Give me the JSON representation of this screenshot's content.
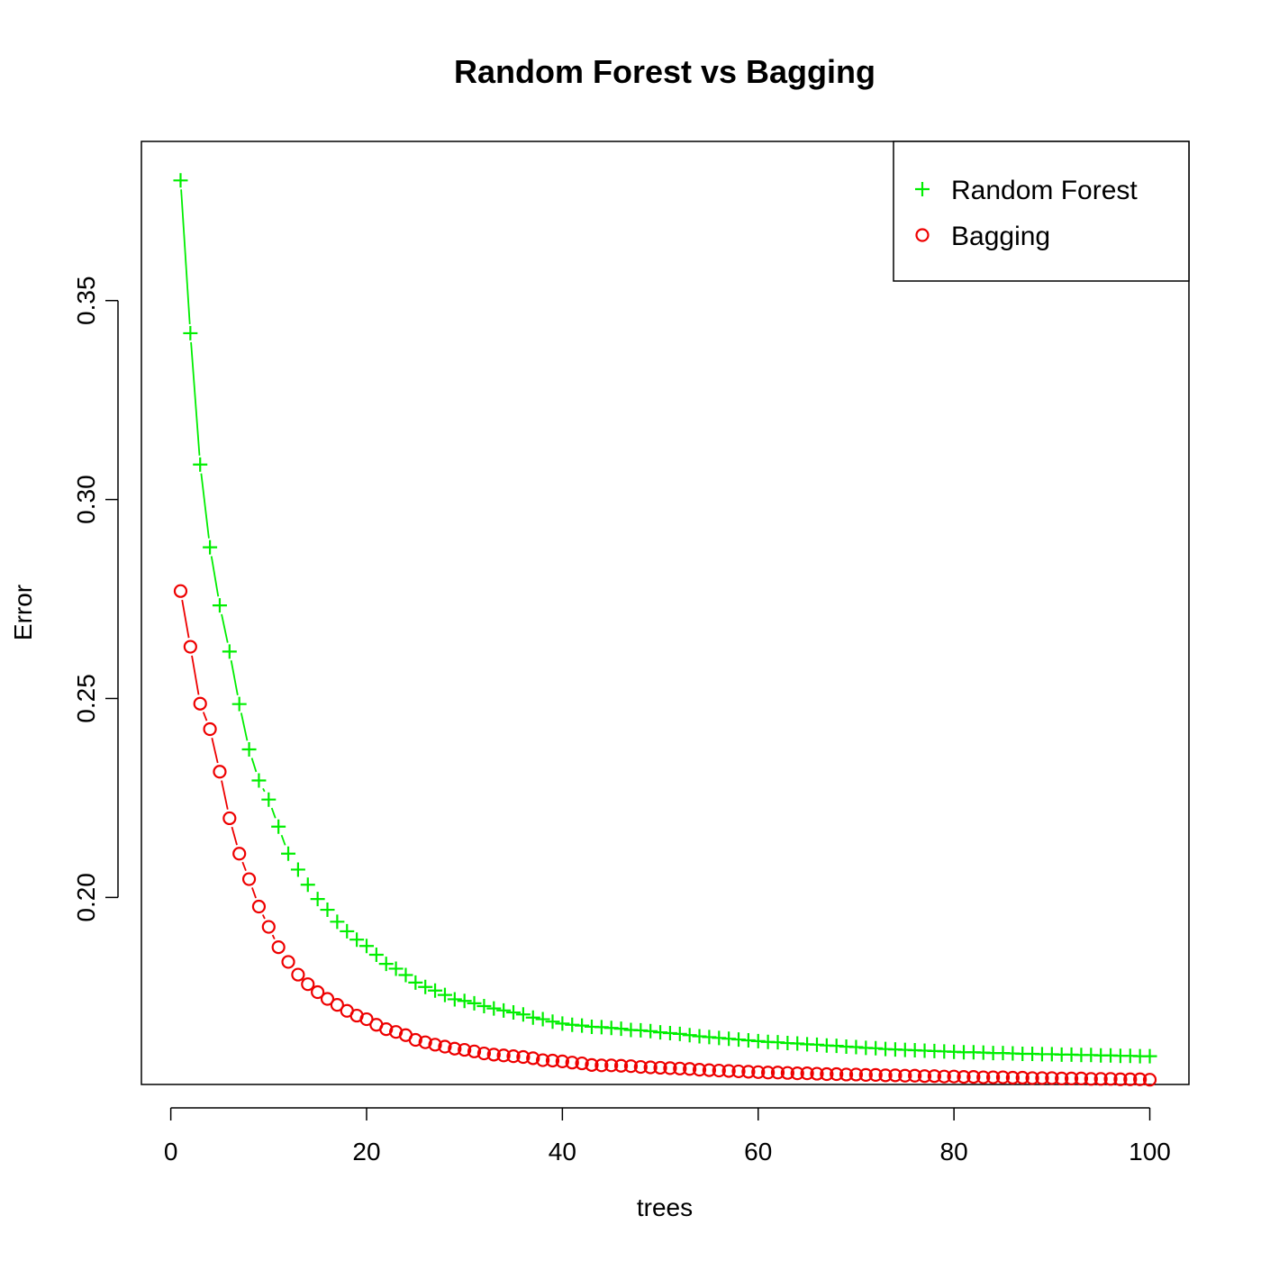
{
  "chart_data": {
    "type": "line",
    "title": "Random Forest vs Bagging",
    "xlabel": "trees",
    "ylabel": "Error",
    "xlim": [
      -3,
      104
    ],
    "ylim": [
      0.153,
      0.39
    ],
    "xticks": [
      0,
      20,
      40,
      60,
      80,
      100
    ],
    "xtick_labels": [
      "0",
      "20",
      "40",
      "60",
      "80",
      "100"
    ],
    "yticks": [
      0.2,
      0.25,
      0.3,
      0.35
    ],
    "ytick_labels": [
      "0.20",
      "0.25",
      "0.30",
      "0.35"
    ],
    "grid": false,
    "legend_position": "top-right",
    "x": [
      1,
      2,
      3,
      4,
      5,
      6,
      7,
      8,
      9,
      10,
      11,
      12,
      13,
      14,
      15,
      16,
      17,
      18,
      19,
      20,
      21,
      22,
      23,
      24,
      25,
      26,
      27,
      28,
      29,
      30,
      31,
      32,
      33,
      34,
      35,
      36,
      37,
      38,
      39,
      40,
      41,
      42,
      43,
      44,
      45,
      46,
      47,
      48,
      49,
      50,
      51,
      52,
      53,
      54,
      55,
      56,
      57,
      58,
      59,
      60,
      61,
      62,
      63,
      64,
      65,
      66,
      67,
      68,
      69,
      70,
      71,
      72,
      73,
      74,
      75,
      76,
      77,
      78,
      79,
      80,
      81,
      82,
      83,
      84,
      85,
      86,
      87,
      88,
      89,
      90,
      91,
      92,
      93,
      94,
      95,
      96,
      97,
      98,
      99,
      100
    ],
    "series": [
      {
        "name": "Random Forest",
        "color": "#00ee00",
        "marker": "plus",
        "values": [
          0.3802,
          0.3418,
          0.3088,
          0.288,
          0.2734,
          0.2618,
          0.2486,
          0.2372,
          0.2294,
          0.2246,
          0.2178,
          0.211,
          0.207,
          0.2032,
          0.1996,
          0.1969,
          0.1939,
          0.1915,
          0.1894,
          0.1878,
          0.1856,
          0.1833,
          0.1821,
          0.1805,
          0.1786,
          0.1775,
          0.1766,
          0.1755,
          0.1744,
          0.174,
          0.1734,
          0.1727,
          0.1721,
          0.1716,
          0.1711,
          0.1706,
          0.1698,
          0.1694,
          0.1688,
          0.1683,
          0.168,
          0.1678,
          0.1675,
          0.1674,
          0.1672,
          0.167,
          0.1667,
          0.1666,
          0.1664,
          0.1661,
          0.1659,
          0.1657,
          0.1654,
          0.1651,
          0.1649,
          0.1647,
          0.1645,
          0.1643,
          0.1641,
          0.1639,
          0.1637,
          0.1636,
          0.1634,
          0.1633,
          0.1631,
          0.163,
          0.1628,
          0.1627,
          0.1625,
          0.1624,
          0.1622,
          0.1621,
          0.1619,
          0.1618,
          0.1617,
          0.1616,
          0.1615,
          0.1614,
          0.1613,
          0.1612,
          0.1611,
          0.1611,
          0.161,
          0.1609,
          0.1609,
          0.1608,
          0.1607,
          0.1607,
          0.1606,
          0.1606,
          0.1605,
          0.1605,
          0.1604,
          0.1604,
          0.1603,
          0.1603,
          0.1602,
          0.1602,
          0.1601,
          0.1601
        ]
      },
      {
        "name": "Bagging",
        "color": "#ee0000",
        "marker": "circle",
        "values": [
          0.277,
          0.263,
          0.2487,
          0.2423,
          0.2316,
          0.2199,
          0.211,
          0.2046,
          0.1977,
          0.1926,
          0.1875,
          0.1838,
          0.1806,
          0.1782,
          0.1762,
          0.1745,
          0.173,
          0.1715,
          0.1703,
          0.1694,
          0.168,
          0.1669,
          0.1662,
          0.1654,
          0.1642,
          0.1636,
          0.163,
          0.1625,
          0.162,
          0.1617,
          0.1613,
          0.1608,
          0.1605,
          0.1603,
          0.1601,
          0.1599,
          0.1596,
          0.1591,
          0.159,
          0.1588,
          0.1585,
          0.1583,
          0.1579,
          0.1578,
          0.1578,
          0.1577,
          0.1576,
          0.1574,
          0.1573,
          0.1572,
          0.1571,
          0.157,
          0.1569,
          0.1567,
          0.1566,
          0.1565,
          0.1564,
          0.1563,
          0.1562,
          0.1561,
          0.156,
          0.156,
          0.1559,
          0.1558,
          0.1558,
          0.1557,
          0.1556,
          0.1556,
          0.1555,
          0.1555,
          0.1554,
          0.1554,
          0.1553,
          0.1553,
          0.1552,
          0.1552,
          0.1551,
          0.1551,
          0.155,
          0.155,
          0.1549,
          0.1549,
          0.1548,
          0.1548,
          0.1548,
          0.1547,
          0.1547,
          0.1546,
          0.1546,
          0.1546,
          0.1545,
          0.1545,
          0.1545,
          0.1544,
          0.1544,
          0.1544,
          0.1543,
          0.1543,
          0.1543,
          0.1542
        ]
      }
    ]
  }
}
